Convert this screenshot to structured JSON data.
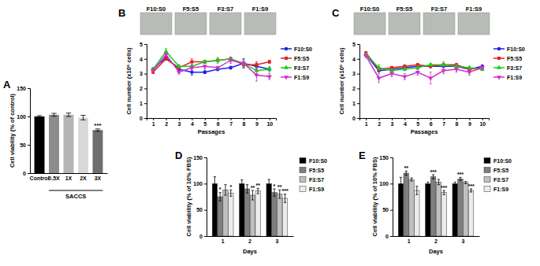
{
  "chart_data": [
    {
      "type": "bar",
      "title": "A",
      "categories": [
        "Control",
        "0.5X",
        "1X",
        "2X",
        "3X"
      ],
      "values": [
        100,
        103,
        103,
        98,
        76
      ],
      "errors": [
        1.5,
        2.5,
        3,
        4,
        2
      ],
      "annotations": [
        null,
        null,
        null,
        null,
        "***"
      ],
      "group_label": "SACCS",
      "colors": [
        "#000000",
        "#8c8c8c",
        "#b4b4b4",
        "#d9d9d9",
        "#6e6e6e"
      ],
      "ylabel": "Cell viability (% of control)",
      "ylim": [
        0,
        150
      ],
      "yticks": [
        0,
        50,
        100,
        150
      ]
    },
    {
      "type": "line",
      "title": "B",
      "image_labels": [
        "F10:S0",
        "F5:S5",
        "F3:S7",
        "F1:S9"
      ],
      "x": [
        1,
        2,
        3,
        4,
        5,
        6,
        7,
        8,
        9,
        10
      ],
      "xlabel": "Passages",
      "ylabel": "Cell number (x10⁶ cells)",
      "xlim": [
        0.5,
        10.5
      ],
      "xticks": [
        1,
        2,
        3,
        4,
        5,
        6,
        7,
        8,
        9,
        10
      ],
      "ylim": [
        0,
        5
      ],
      "yticks": [
        0,
        1,
        2,
        3,
        4,
        5
      ],
      "legend": "right",
      "series": [
        {
          "name": "F10:S0",
          "color": "#1f1fe6",
          "marker": "circle",
          "values": [
            3.3,
            4.1,
            3.3,
            3.1,
            3.1,
            3.3,
            3.4,
            3.7,
            3.5,
            3.3
          ],
          "errors": [
            0.1,
            0.1,
            0.2,
            0.2,
            0.1,
            0.1,
            0.1,
            0.3,
            0.2,
            0.1
          ]
        },
        {
          "name": "F5:S5",
          "color": "#e61f1f",
          "marker": "square",
          "values": [
            3.1,
            4.0,
            3.4,
            3.8,
            3.8,
            3.9,
            4.0,
            3.6,
            3.6,
            3.8
          ],
          "errors": [
            0.1,
            0.1,
            0.1,
            0.2,
            0.1,
            0.1,
            0.1,
            0.2,
            0.2,
            0.1
          ]
        },
        {
          "name": "F3:S7",
          "color": "#1fc81f",
          "marker": "triangle",
          "values": [
            3.3,
            4.5,
            3.5,
            3.5,
            3.8,
            3.9,
            4.0,
            3.7,
            3.2,
            3.3
          ],
          "errors": [
            0.1,
            0.2,
            0.1,
            0.1,
            0.1,
            0.2,
            0.1,
            0.3,
            0.2,
            0.2
          ]
        },
        {
          "name": "F1:S9",
          "color": "#cc33cc",
          "marker": "triangle-down",
          "values": [
            3.2,
            4.3,
            3.1,
            3.4,
            3.5,
            3.4,
            3.9,
            3.7,
            2.9,
            2.8
          ],
          "errors": [
            0.1,
            0.1,
            0.1,
            0.2,
            0.2,
            0.1,
            0.2,
            0.3,
            0.4,
            0.2
          ]
        }
      ]
    },
    {
      "type": "line",
      "title": "C",
      "image_labels": [
        "F10:S0",
        "F5:S5",
        "F3:S7",
        "F1:S9"
      ],
      "x": [
        1,
        2,
        3,
        4,
        5,
        6,
        7,
        8,
        9,
        10
      ],
      "xlabel": "Passages",
      "ylabel": "Cell number (x10⁶ cells)",
      "xlim": [
        0.5,
        10.5
      ],
      "xticks": [
        1,
        2,
        3,
        4,
        5,
        6,
        7,
        8,
        9,
        10
      ],
      "ylim": [
        0,
        5
      ],
      "yticks": [
        0,
        1,
        2,
        3,
        4,
        5
      ],
      "legend": "right",
      "series": [
        {
          "name": "F10:S0",
          "color": "#1f1fe6",
          "marker": "circle",
          "values": [
            4.3,
            3.2,
            3.3,
            3.4,
            3.5,
            3.5,
            3.5,
            3.5,
            3.3,
            3.5
          ],
          "errors": [
            0.1,
            0.1,
            0.1,
            0.1,
            0.1,
            0.1,
            0.1,
            0.1,
            0.1,
            0.1
          ]
        },
        {
          "name": "F5:S5",
          "color": "#e61f1f",
          "marker": "square",
          "values": [
            4.4,
            3.3,
            3.4,
            3.5,
            3.6,
            3.5,
            3.6,
            3.6,
            3.3,
            3.4
          ],
          "errors": [
            0.1,
            0.1,
            0.1,
            0.1,
            0.1,
            0.1,
            0.1,
            0.1,
            0.1,
            0.1
          ]
        },
        {
          "name": "F3:S7",
          "color": "#1fc81f",
          "marker": "triangle",
          "values": [
            4.3,
            3.4,
            3.2,
            3.3,
            3.4,
            3.6,
            3.6,
            3.5,
            3.4,
            3.3
          ],
          "errors": [
            0.1,
            0.2,
            0.1,
            0.1,
            0.1,
            0.1,
            0.2,
            0.1,
            0.1,
            0.1
          ]
        },
        {
          "name": "F1:S9",
          "color": "#cc33cc",
          "marker": "triangle-down",
          "values": [
            4.2,
            2.7,
            3.0,
            2.8,
            3.1,
            2.7,
            3.2,
            3.3,
            3.1,
            3.4
          ],
          "errors": [
            0.1,
            0.3,
            0.2,
            0.2,
            0.2,
            0.4,
            0.2,
            0.2,
            0.2,
            0.1
          ]
        }
      ]
    },
    {
      "type": "grouped_bar",
      "title": "D",
      "categories": [
        "1",
        "2",
        "3"
      ],
      "xlabel": "Days",
      "ylabel": "Cell viability (% of 10% FBS)",
      "ylim": [
        0,
        150
      ],
      "yticks": [
        0,
        50,
        100,
        150
      ],
      "legend": "right",
      "series": [
        {
          "name": "F10:S0",
          "color": "#000000",
          "values": [
            100,
            100,
            100
          ],
          "errors": [
            13,
            7,
            8
          ],
          "annotations": [
            null,
            null,
            null
          ]
        },
        {
          "name": "F5:S5",
          "color": "#7f7f7f",
          "values": [
            75,
            90,
            83
          ],
          "errors": [
            8,
            8,
            7
          ],
          "annotations": [
            "*",
            null,
            "*"
          ]
        },
        {
          "name": "F3:S7",
          "color": "#bfbfbf",
          "values": [
            88,
            78,
            80
          ],
          "errors": [
            10,
            9,
            8
          ],
          "annotations": [
            null,
            "**",
            "**"
          ]
        },
        {
          "name": "F1:S9",
          "color": "#ececec",
          "values": [
            82,
            86,
            72
          ],
          "errors": [
            6,
            5,
            8
          ],
          "annotations": [
            "*",
            "**",
            "***"
          ]
        }
      ]
    },
    {
      "type": "grouped_bar",
      "title": "E",
      "categories": [
        "1",
        "2",
        "3"
      ],
      "xlabel": "Days",
      "ylabel": "Cell viability (% of 10% FBS)",
      "ylim": [
        0,
        150
      ],
      "yticks": [
        0,
        50,
        100,
        150
      ],
      "legend": "right",
      "series": [
        {
          "name": "F10:S0",
          "color": "#000000",
          "values": [
            100,
            100,
            100
          ],
          "errors": [
            12,
            3,
            3
          ],
          "annotations": [
            null,
            null,
            null
          ]
        },
        {
          "name": "F5:S5",
          "color": "#7f7f7f",
          "values": [
            120,
            113,
            109
          ],
          "errors": [
            4,
            4,
            3
          ],
          "annotations": [
            "**",
            "***",
            "***"
          ]
        },
        {
          "name": "F3:S7",
          "color": "#bfbfbf",
          "values": [
            108,
            103,
            102
          ],
          "errors": [
            3,
            5,
            2
          ],
          "annotations": [
            null,
            null,
            null
          ]
        },
        {
          "name": "F1:S9",
          "color": "#ececec",
          "values": [
            87,
            83,
            87
          ],
          "errors": [
            8,
            4,
            3
          ],
          "annotations": [
            null,
            "***",
            "***"
          ]
        }
      ]
    }
  ]
}
